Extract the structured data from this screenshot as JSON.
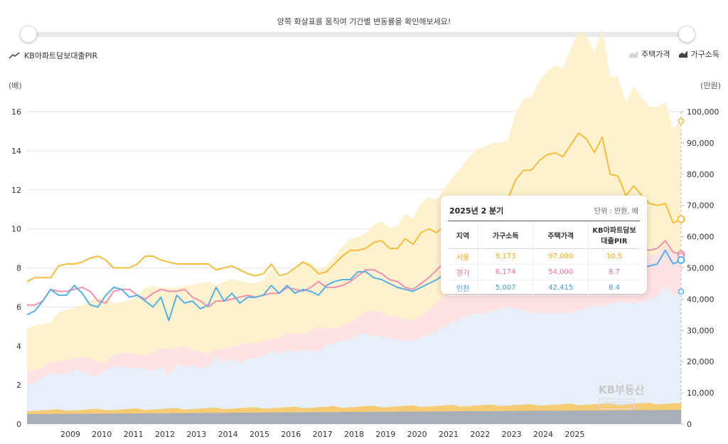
{
  "hint_text": "양쪽 화살표를 움직여 기간별 변동률을 확인해보세요!",
  "series_title": "KB아파트담보대출PIR",
  "legend": {
    "price": "주택가격",
    "income": "가구소득"
  },
  "unit_left": "(배)",
  "unit_right": "(만원)",
  "colors": {
    "seoul": "#f5bd3b",
    "gyeonggi": "#f28fb0",
    "incheon": "#55b0e8",
    "seoul_fill": "#fdf0c4",
    "gyeonggi_fill": "#fde0e8",
    "incheon_fill": "#e3f1fb",
    "income_fill": "#f6c865",
    "income_base": "#9ba9c4"
  },
  "tooltip": {
    "title": "2025년 2 분기",
    "unit": "단위 : 만원, 배",
    "headers": [
      "지역",
      "가구소득",
      "주택가격",
      "KB아파트담보대출PIR"
    ],
    "rows": [
      [
        "서울",
        "9,173",
        "97,000",
        "10.5"
      ],
      [
        "경기",
        "6,174",
        "54,000",
        "8.7"
      ],
      [
        "인천",
        "5,007",
        "42,415",
        "8.4"
      ]
    ]
  },
  "watermark": "KB부동산",
  "watermark_sub": "데이터허브",
  "chart_data": {
    "type": "line",
    "x_start": "2008 Q1",
    "x_end": "2025 Q2",
    "year_labels": [
      "2009",
      "2010",
      "2011",
      "2012",
      "2013",
      "2014",
      "2015",
      "2016",
      "2017",
      "2018",
      "2019",
      "2020",
      "2021",
      "2022",
      "2023",
      "2024",
      "2025"
    ],
    "y_left": {
      "label": "(배)",
      "range": [
        0,
        16
      ],
      "ticks": [
        0,
        2,
        4,
        6,
        8,
        10,
        12,
        14,
        16
      ]
    },
    "y_right": {
      "label": "(만원)",
      "range": [
        0,
        100000
      ],
      "ticks": [
        "0",
        "10,000",
        "20,000",
        "30,000",
        "40,000",
        "50,000",
        "60,000",
        "70,000",
        "80,000",
        "90,000",
        "100,000"
      ]
    },
    "series": [
      {
        "name": "서울",
        "pir": [
          7.3,
          7.5,
          7.5,
          7.5,
          8.1,
          8.2,
          8.2,
          8.3,
          8.5,
          8.6,
          8.4,
          8.0,
          8.0,
          8.0,
          8.2,
          8.6,
          8.6,
          8.4,
          8.3,
          8.2,
          8.2,
          8.2,
          8.2,
          8.2,
          7.9,
          8.0,
          8.1,
          7.9,
          7.7,
          7.6,
          7.7,
          8.2,
          7.6,
          7.7,
          8.0,
          8.3,
          8.1,
          7.7,
          7.8,
          8.2,
          8.6,
          8.9,
          8.9,
          9.0,
          9.3,
          9.4,
          9.0,
          9.0,
          9.5,
          9.2,
          9.8,
          10.0,
          9.8,
          10.2,
          10.6,
          10.9,
          11.2,
          11.5,
          11.5,
          11.6,
          11.5,
          11.5,
          12.5,
          13.0,
          13.0,
          13.5,
          13.8,
          13.9,
          13.7,
          14.3,
          14.9,
          14.6,
          13.9,
          14.7,
          12.8,
          12.7,
          11.7,
          12.2,
          11.7,
          11.3,
          11.2,
          11.3,
          10.3,
          10.5
        ]
      },
      {
        "name": "경기",
        "pir": [
          6.1,
          6.1,
          6.3,
          6.9,
          6.8,
          6.8,
          6.9,
          7.0,
          6.8,
          6.3,
          6.2,
          6.8,
          6.9,
          6.9,
          6.6,
          6.4,
          6.7,
          6.9,
          6.8,
          6.8,
          6.9,
          6.5,
          6.3,
          6.0,
          6.3,
          6.3,
          6.4,
          6.5,
          6.6,
          6.5,
          6.6,
          6.7,
          6.7,
          7.0,
          6.9,
          6.8,
          7.0,
          7.3,
          7.0,
          7.0,
          7.1,
          7.3,
          7.6,
          7.9,
          7.9,
          7.7,
          7.4,
          7.3,
          7.0,
          6.9,
          7.2,
          7.5,
          7.9,
          8.3,
          8.8,
          9.1,
          9.3,
          9.4,
          9.5,
          9.6,
          9.8,
          10.1,
          10.0,
          9.7,
          9.4,
          9.1,
          9.0,
          9.0,
          8.9,
          8.9,
          9.0,
          9.1,
          9.2,
          9.0,
          9.2,
          9.3,
          9.2,
          9.1,
          9.0,
          8.9,
          9.0,
          9.4,
          8.8,
          8.7
        ]
      },
      {
        "name": "인천",
        "pir": [
          5.6,
          5.8,
          6.3,
          6.9,
          6.6,
          6.6,
          7.1,
          6.7,
          6.1,
          6.0,
          6.6,
          7.0,
          6.9,
          6.5,
          6.6,
          6.3,
          6.0,
          6.5,
          5.3,
          6.6,
          6.2,
          6.3,
          5.9,
          6.1,
          7.0,
          6.3,
          6.7,
          6.2,
          6.5,
          6.5,
          6.6,
          7.1,
          6.7,
          7.1,
          6.7,
          6.9,
          6.8,
          6.6,
          7.1,
          7.3,
          7.4,
          7.4,
          7.8,
          7.8,
          7.5,
          7.4,
          7.2,
          7.0,
          6.9,
          6.8,
          7.0,
          7.2,
          7.4,
          7.7,
          8.0,
          8.2,
          8.4,
          8.5,
          8.4,
          8.5,
          8.6,
          8.7,
          8.5,
          8.3,
          8.1,
          8.0,
          7.9,
          7.9,
          7.8,
          7.8,
          7.9,
          8.0,
          8.1,
          8.0,
          8.1,
          8.2,
          8.1,
          8.0,
          8.0,
          8.1,
          8.2,
          8.9,
          8.2,
          8.4
        ]
      }
    ],
    "price_max": {
      "seoul": 97000,
      "gyeonggi": 54000,
      "incheon": 42415
    }
  }
}
